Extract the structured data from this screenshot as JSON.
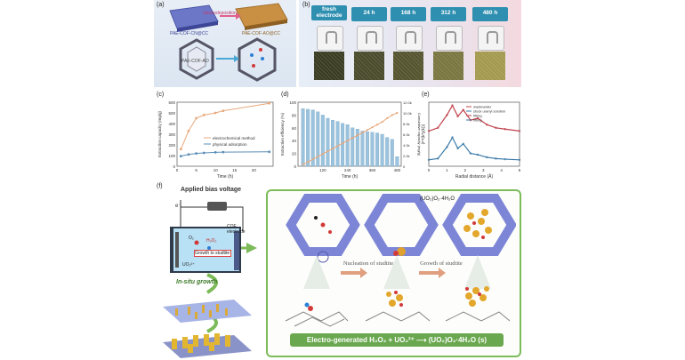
{
  "panel_labels": {
    "a": "(a)",
    "b": "(b)",
    "c": "(c)",
    "d": "(d)",
    "e": "(e)",
    "f": "(f)"
  },
  "panel_a": {
    "arrow_label": "electrodeposition",
    "left_material": "PAE-COF-CN@CC",
    "right_material": "PAE-COF-AO@CC",
    "left_framework": "PAE-COF-AO"
  },
  "panel_b": {
    "tabs": [
      "fresh electrode",
      "24 h",
      "168 h",
      "312 h",
      "480 h"
    ],
    "electrode_colors": [
      "#3a3c22",
      "#4a4a2c",
      "#55542f",
      "#7a7640",
      "#a39a4e"
    ]
  },
  "chart_c": {
    "type": "line",
    "xlabel": "Time (h)",
    "ylabel": "Extraction capacity (mg/g)",
    "xlim": [
      0,
      25
    ],
    "ylim": [
      0,
      600
    ],
    "xticks": [
      "0",
      "5",
      "10",
      "15",
      "20"
    ],
    "yticks": [
      "0",
      "100",
      "200",
      "300",
      "400",
      "500",
      "600"
    ],
    "legend_placement": "center",
    "series": [
      {
        "name": "electrochemical method",
        "color": "#e8a87c",
        "x": [
          1,
          3,
          5,
          7,
          10,
          12,
          24
        ],
        "y": [
          160,
          330,
          450,
          480,
          500,
          520,
          590
        ]
      },
      {
        "name": "physical adsorption",
        "color": "#5a8db8",
        "x": [
          1,
          3,
          5,
          7,
          10,
          12,
          24
        ],
        "y": [
          95,
          110,
          120,
          125,
          130,
          132,
          135
        ]
      }
    ]
  },
  "chart_d": {
    "type": "bar",
    "xlabel": "Time (h)",
    "ylabel": "Extraction efficiency (%)",
    "ylabel_right": "Cumulative capacity (mg/g)",
    "xticks": [
      "120",
      "240",
      "360",
      "480"
    ],
    "yticks": [
      "0",
      "20",
      "40",
      "60",
      "80",
      "100"
    ],
    "yticks_right": [
      "0",
      "2.0k",
      "4.0k",
      "6.0k",
      "8.0k",
      "10.0k",
      "12.0k"
    ],
    "ylim": [
      0,
      100
    ],
    "ylim_right": [
      0,
      12000
    ],
    "bar_color": "#9cc3dd",
    "line_color": "#e8a87c",
    "x": [
      24,
      48,
      72,
      96,
      120,
      144,
      168,
      192,
      216,
      240,
      264,
      288,
      312,
      336,
      360,
      384,
      408,
      432,
      456,
      480
    ],
    "values": [
      90,
      89,
      88,
      85,
      80,
      75,
      72,
      70,
      67,
      65,
      60,
      58,
      55,
      54,
      53,
      52,
      50,
      45,
      42,
      15
    ],
    "cumulative": [
      300,
      800,
      1300,
      1800,
      2300,
      2800,
      3300,
      3800,
      4300,
      4800,
      5300,
      5800,
      6300,
      6800,
      7300,
      7800,
      8300,
      9000,
      9600,
      10000
    ]
  },
  "chart_e": {
    "type": "line",
    "xlabel": "Radial distance (Å)",
    "ylabel": "|FT(k³χ(k))|",
    "xlim": [
      0,
      5
    ],
    "xticks": [
      "0",
      "1",
      "2",
      "3",
      "4",
      "5"
    ],
    "legend": [
      "wastewater",
      "stock uranyl solution",
      "fitting",
      "fitting"
    ],
    "series": [
      {
        "name": "wastewater",
        "color": "#c0404a",
        "x": [
          0,
          0.5,
          1.0,
          1.3,
          1.6,
          1.9,
          2.3,
          2.7,
          3.2,
          3.7,
          4.2,
          5.0
        ],
        "y": [
          0.55,
          0.6,
          0.8,
          0.95,
          0.78,
          0.88,
          0.72,
          0.75,
          0.65,
          0.6,
          0.58,
          0.55
        ]
      },
      {
        "name": "stock uranyl solution",
        "color": "#3a7aa8",
        "x": [
          0,
          0.5,
          1.0,
          1.3,
          1.6,
          1.9,
          2.3,
          2.7,
          3.2,
          3.7,
          4.2,
          5.0
        ],
        "y": [
          0.1,
          0.12,
          0.3,
          0.45,
          0.28,
          0.35,
          0.2,
          0.18,
          0.14,
          0.12,
          0.11,
          0.1
        ]
      }
    ]
  },
  "panel_f": {
    "bias_label": "Applied bias voltage",
    "electron": "e⁻",
    "cof_label": "COF electrode",
    "o2": "O₂",
    "h2o2": "H₂O₂",
    "growth": "Growth to studtite",
    "uo2": "UO₂²⁺",
    "insitu": "In-situ growth",
    "product": "(UO₂)O₂·4H₂O",
    "nucleation": "Nucleation of studtite",
    "growth_of": "Growth of studtite",
    "equation": "Electro-generated H₂O₂ + UO₂²⁺ ⟶ (UO₂)O₂·4H₂O (s)"
  }
}
